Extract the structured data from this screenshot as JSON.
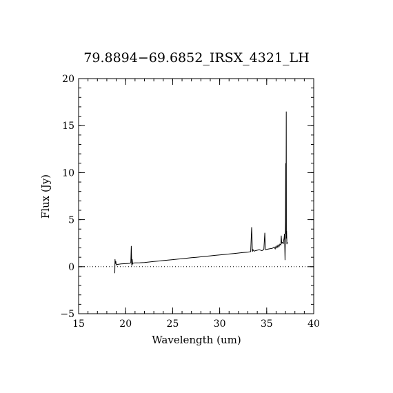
{
  "chart_data": {
    "type": "line",
    "title": "79.8894−69.6852_IRSX_4321_LH",
    "xlabel": "Wavelength (um)",
    "ylabel": "Flux (Jy)",
    "xlim": [
      15,
      40
    ],
    "ylim": [
      -5,
      20
    ],
    "xticks": [
      {
        "value": 15,
        "label": "15"
      },
      {
        "value": 20,
        "label": "20"
      },
      {
        "value": 25,
        "label": "25"
      },
      {
        "value": 30,
        "label": "30"
      },
      {
        "value": 35,
        "label": "35"
      },
      {
        "value": 40,
        "label": "40"
      }
    ],
    "yticks": [
      {
        "value": -5,
        "label": "−5"
      },
      {
        "value": 0,
        "label": "0"
      },
      {
        "value": 5,
        "label": "5"
      },
      {
        "value": 10,
        "label": "10"
      },
      {
        "value": 15,
        "label": "15"
      },
      {
        "value": 20,
        "label": "20"
      }
    ],
    "x_minor_step": 1,
    "y_minor_step": 1,
    "reference_line": {
      "y": 0,
      "style": "dotted"
    },
    "grid": false,
    "series": [
      {
        "color": "#000000",
        "x": [
          18.85,
          18.87,
          18.9,
          18.95,
          19.0,
          19.2,
          19.5,
          20.0,
          20.4,
          20.55,
          20.6,
          20.65,
          20.7,
          20.75,
          20.8,
          21.0,
          21.5,
          22.0,
          22.5,
          23.0,
          23.5,
          24.0,
          24.5,
          25.0,
          25.5,
          26.0,
          26.5,
          27.0,
          27.5,
          28.0,
          28.5,
          29.0,
          29.5,
          30.0,
          30.5,
          31.0,
          31.5,
          32.0,
          32.5,
          33.0,
          33.3,
          33.4,
          33.48,
          33.55,
          33.65,
          33.8,
          34.0,
          34.2,
          34.5,
          34.7,
          34.8,
          34.85,
          34.9,
          35.0,
          35.3,
          35.6,
          35.8,
          35.9,
          36.0,
          36.1,
          36.2,
          36.3,
          36.4,
          36.5,
          36.55,
          36.6,
          36.7,
          36.75,
          36.8,
          36.85,
          36.9,
          36.95,
          37.0,
          37.02,
          37.05,
          37.08,
          37.1,
          37.12,
          37.15,
          37.2
        ],
        "y": [
          -0.7,
          0.8,
          0.3,
          0.6,
          0.2,
          0.25,
          0.3,
          0.32,
          0.35,
          0.4,
          2.2,
          0.1,
          0.8,
          0.3,
          0.38,
          0.4,
          0.42,
          0.45,
          0.5,
          0.55,
          0.6,
          0.65,
          0.7,
          0.75,
          0.8,
          0.85,
          0.9,
          0.95,
          1.0,
          1.05,
          1.1,
          1.15,
          1.2,
          1.25,
          1.3,
          1.35,
          1.4,
          1.45,
          1.5,
          1.55,
          1.6,
          4.2,
          1.6,
          1.8,
          1.65,
          1.7,
          1.75,
          1.8,
          1.7,
          1.85,
          3.6,
          1.9,
          1.8,
          1.85,
          1.9,
          1.95,
          2.1,
          1.9,
          2.2,
          2.0,
          2.3,
          2.1,
          2.4,
          2.3,
          3.3,
          2.5,
          2.6,
          2.4,
          2.8,
          3.0,
          3.5,
          0.7,
          4.8,
          11.0,
          3.5,
          16.5,
          3.0,
          3.8,
          2.4,
          2.6
        ]
      }
    ]
  }
}
